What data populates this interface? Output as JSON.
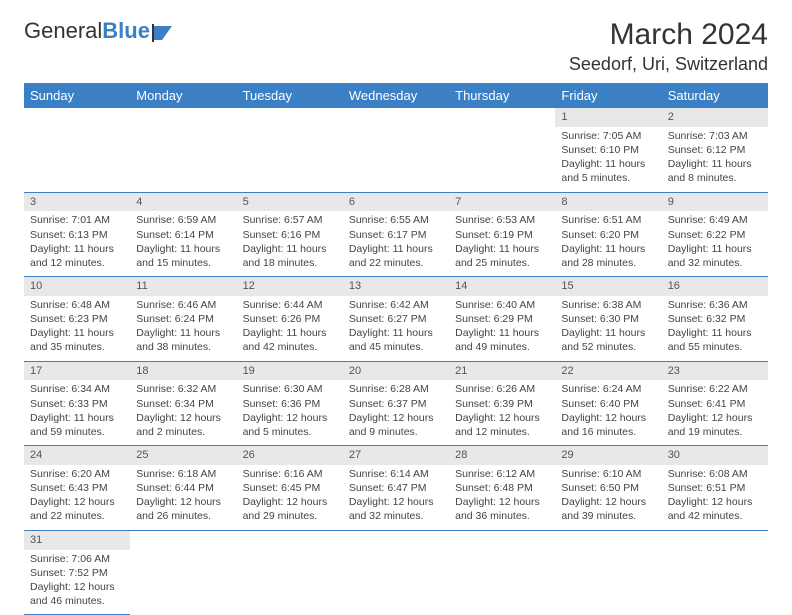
{
  "brand": {
    "part1": "General",
    "part2": "Blue"
  },
  "title": "March 2024",
  "location": "Seedorf, Uri, Switzerland",
  "colors": {
    "header_bg": "#3b7fc4",
    "header_text": "#ffffff",
    "daynum_bg": "#e8e8e8",
    "row_border": "#3b7fc4",
    "body_text": "#444444",
    "title_text": "#333333"
  },
  "fonts": {
    "title_size_pt": 22,
    "location_size_pt": 14,
    "weekday_size_pt": 10,
    "cell_size_pt": 8
  },
  "weekdays": [
    "Sunday",
    "Monday",
    "Tuesday",
    "Wednesday",
    "Thursday",
    "Friday",
    "Saturday"
  ],
  "leading_blanks": 5,
  "days": [
    {
      "n": 1,
      "sunrise": "7:05 AM",
      "sunset": "6:10 PM",
      "daylight": "11 hours and 5 minutes."
    },
    {
      "n": 2,
      "sunrise": "7:03 AM",
      "sunset": "6:12 PM",
      "daylight": "11 hours and 8 minutes."
    },
    {
      "n": 3,
      "sunrise": "7:01 AM",
      "sunset": "6:13 PM",
      "daylight": "11 hours and 12 minutes."
    },
    {
      "n": 4,
      "sunrise": "6:59 AM",
      "sunset": "6:14 PM",
      "daylight": "11 hours and 15 minutes."
    },
    {
      "n": 5,
      "sunrise": "6:57 AM",
      "sunset": "6:16 PM",
      "daylight": "11 hours and 18 minutes."
    },
    {
      "n": 6,
      "sunrise": "6:55 AM",
      "sunset": "6:17 PM",
      "daylight": "11 hours and 22 minutes."
    },
    {
      "n": 7,
      "sunrise": "6:53 AM",
      "sunset": "6:19 PM",
      "daylight": "11 hours and 25 minutes."
    },
    {
      "n": 8,
      "sunrise": "6:51 AM",
      "sunset": "6:20 PM",
      "daylight": "11 hours and 28 minutes."
    },
    {
      "n": 9,
      "sunrise": "6:49 AM",
      "sunset": "6:22 PM",
      "daylight": "11 hours and 32 minutes."
    },
    {
      "n": 10,
      "sunrise": "6:48 AM",
      "sunset": "6:23 PM",
      "daylight": "11 hours and 35 minutes."
    },
    {
      "n": 11,
      "sunrise": "6:46 AM",
      "sunset": "6:24 PM",
      "daylight": "11 hours and 38 minutes."
    },
    {
      "n": 12,
      "sunrise": "6:44 AM",
      "sunset": "6:26 PM",
      "daylight": "11 hours and 42 minutes."
    },
    {
      "n": 13,
      "sunrise": "6:42 AM",
      "sunset": "6:27 PM",
      "daylight": "11 hours and 45 minutes."
    },
    {
      "n": 14,
      "sunrise": "6:40 AM",
      "sunset": "6:29 PM",
      "daylight": "11 hours and 49 minutes."
    },
    {
      "n": 15,
      "sunrise": "6:38 AM",
      "sunset": "6:30 PM",
      "daylight": "11 hours and 52 minutes."
    },
    {
      "n": 16,
      "sunrise": "6:36 AM",
      "sunset": "6:32 PM",
      "daylight": "11 hours and 55 minutes."
    },
    {
      "n": 17,
      "sunrise": "6:34 AM",
      "sunset": "6:33 PM",
      "daylight": "11 hours and 59 minutes."
    },
    {
      "n": 18,
      "sunrise": "6:32 AM",
      "sunset": "6:34 PM",
      "daylight": "12 hours and 2 minutes."
    },
    {
      "n": 19,
      "sunrise": "6:30 AM",
      "sunset": "6:36 PM",
      "daylight": "12 hours and 5 minutes."
    },
    {
      "n": 20,
      "sunrise": "6:28 AM",
      "sunset": "6:37 PM",
      "daylight": "12 hours and 9 minutes."
    },
    {
      "n": 21,
      "sunrise": "6:26 AM",
      "sunset": "6:39 PM",
      "daylight": "12 hours and 12 minutes."
    },
    {
      "n": 22,
      "sunrise": "6:24 AM",
      "sunset": "6:40 PM",
      "daylight": "12 hours and 16 minutes."
    },
    {
      "n": 23,
      "sunrise": "6:22 AM",
      "sunset": "6:41 PM",
      "daylight": "12 hours and 19 minutes."
    },
    {
      "n": 24,
      "sunrise": "6:20 AM",
      "sunset": "6:43 PM",
      "daylight": "12 hours and 22 minutes."
    },
    {
      "n": 25,
      "sunrise": "6:18 AM",
      "sunset": "6:44 PM",
      "daylight": "12 hours and 26 minutes."
    },
    {
      "n": 26,
      "sunrise": "6:16 AM",
      "sunset": "6:45 PM",
      "daylight": "12 hours and 29 minutes."
    },
    {
      "n": 27,
      "sunrise": "6:14 AM",
      "sunset": "6:47 PM",
      "daylight": "12 hours and 32 minutes."
    },
    {
      "n": 28,
      "sunrise": "6:12 AM",
      "sunset": "6:48 PM",
      "daylight": "12 hours and 36 minutes."
    },
    {
      "n": 29,
      "sunrise": "6:10 AM",
      "sunset": "6:50 PM",
      "daylight": "12 hours and 39 minutes."
    },
    {
      "n": 30,
      "sunrise": "6:08 AM",
      "sunset": "6:51 PM",
      "daylight": "12 hours and 42 minutes."
    },
    {
      "n": 31,
      "sunrise": "7:06 AM",
      "sunset": "7:52 PM",
      "daylight": "12 hours and 46 minutes."
    }
  ],
  "labels": {
    "sunrise": "Sunrise: ",
    "sunset": "Sunset: ",
    "daylight": "Daylight: "
  }
}
